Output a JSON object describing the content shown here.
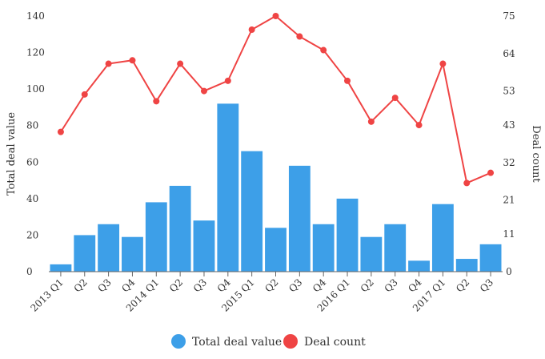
{
  "chart_data": {
    "type": "bar",
    "categories": [
      "2013 Q1",
      "Q2",
      "Q3",
      "Q4",
      "2014 Q1",
      "Q2",
      "Q3",
      "Q4",
      "2015 Q1",
      "Q2",
      "Q3",
      "Q4",
      "2016 Q1",
      "Q2",
      "Q3",
      "Q4",
      "2017 Q1",
      "Q2",
      "Q3"
    ],
    "series": [
      {
        "name": "Total deal value",
        "kind": "bar",
        "axis": "left",
        "color": "#3d9fe8",
        "values": [
          4,
          20,
          26,
          19,
          38,
          47,
          28,
          92,
          66,
          24,
          58,
          26,
          40,
          19,
          26,
          6,
          37,
          7,
          15
        ]
      },
      {
        "name": "Deal count",
        "kind": "line",
        "axis": "right",
        "color": "#ef4444",
        "values": [
          41,
          52,
          61,
          62,
          50,
          61,
          53,
          56,
          71,
          75,
          69,
          65,
          56,
          44,
          51,
          43,
          61,
          26,
          29
        ]
      }
    ],
    "ylabel": "Total deal value",
    "y2label": "Deal count",
    "ylim": [
      0,
      140
    ],
    "yticks": [
      0,
      20,
      40,
      60,
      80,
      100,
      120,
      140
    ],
    "y2lim": [
      0,
      75
    ],
    "y2ticks": [
      0,
      11,
      21,
      32,
      43,
      53,
      64,
      75
    ],
    "grid": false,
    "legend": "bottom-center"
  }
}
